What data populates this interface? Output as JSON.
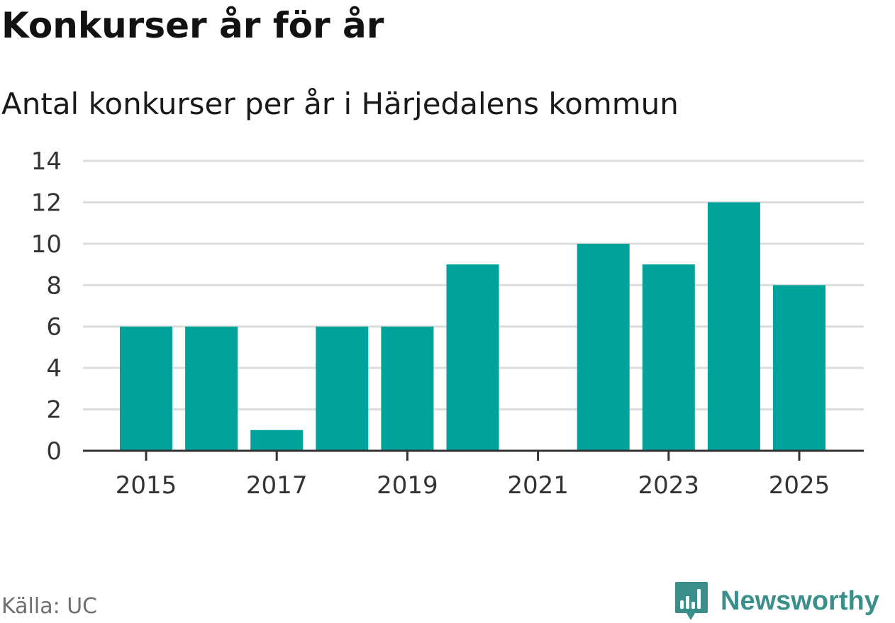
{
  "title": "Konkurser år för år",
  "subtitle": "Antal konkurser per år i Härjedalens kommun",
  "source": "Källa: UC",
  "brand": {
    "name": "Newsworthy",
    "icon": "newsworthy-logo-icon",
    "color": "#3a8f8a"
  },
  "colors": {
    "bar": "#00a39a",
    "grid": "#dddddd",
    "axis": "#333333",
    "tick_text": "#333333"
  },
  "chart_data": {
    "type": "bar",
    "title": "Konkurser år för år",
    "subtitle": "Antal konkurser per år i Härjedalens kommun",
    "x": [
      2015,
      2016,
      2017,
      2018,
      2019,
      2020,
      2021,
      2022,
      2023,
      2024,
      2025
    ],
    "values": [
      6,
      6,
      1,
      6,
      6,
      9,
      0,
      10,
      9,
      12,
      8
    ],
    "x_tick_labels": [
      "2015",
      "2017",
      "2019",
      "2021",
      "2023",
      "2025"
    ],
    "y_tick_labels": [
      "0",
      "2",
      "4",
      "6",
      "8",
      "10",
      "12",
      "14"
    ],
    "ylim": [
      0,
      14
    ],
    "xlabel": "",
    "ylabel": "",
    "grid": true,
    "legend": "none"
  }
}
